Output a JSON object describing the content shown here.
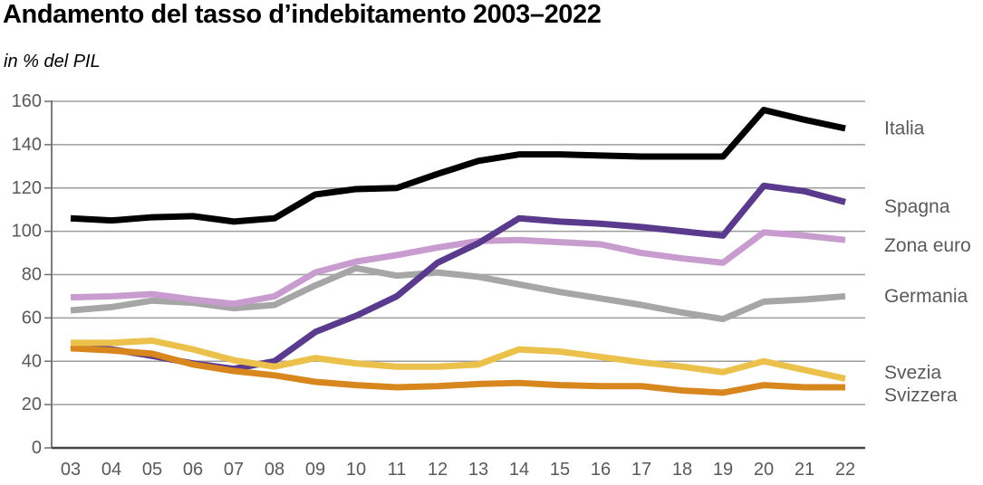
{
  "title": "Andamento del tasso d’indebitamento 2003–2022",
  "subtitle": "in % del PIL",
  "chart_data": {
    "type": "line",
    "categories": [
      "03",
      "04",
      "05",
      "06",
      "07",
      "08",
      "09",
      "10",
      "11",
      "12",
      "13",
      "14",
      "15",
      "16",
      "17",
      "18",
      "19",
      "20",
      "21",
      "22"
    ],
    "yticks": [
      0,
      20,
      40,
      60,
      80,
      100,
      120,
      140,
      160
    ],
    "ylim": [
      0,
      160
    ],
    "xlabel": "",
    "ylabel": "in % del PIL",
    "grid": true,
    "legend_position": "right-line-end-labels",
    "tick_text_color": "#58595b",
    "grid_color": "#9d9d9d",
    "axis_color": "#454545",
    "series": [
      {
        "name": "Italia",
        "color": "#000000",
        "values": [
          106,
          105,
          106.5,
          107,
          104.5,
          106,
          117,
          119.5,
          120,
          126.5,
          132.5,
          135.5,
          135.5,
          135,
          134.5,
          134.5,
          134.5,
          156,
          151.5,
          147.5
        ]
      },
      {
        "name": "Spagna",
        "color": "#5a3a8c",
        "values": [
          47.5,
          45.5,
          42.5,
          39,
          36.5,
          40,
          53.5,
          61,
          70,
          85.5,
          94.5,
          106,
          104.5,
          103.5,
          102,
          100,
          98,
          121,
          118.5,
          113.5
        ]
      },
      {
        "name": "Zona euro",
        "color": "#c89ccf",
        "values": [
          69.5,
          70,
          71,
          68.5,
          66.5,
          70,
          81,
          86,
          89,
          92.5,
          95.5,
          96,
          95,
          94,
          90,
          87.5,
          85.5,
          99.5,
          98,
          96
        ]
      },
      {
        "name": "Germania",
        "color": "#a6a6a6",
        "values": [
          63.5,
          65,
          68,
          67,
          64.5,
          66,
          75,
          83,
          79.5,
          81,
          79,
          75.5,
          72,
          69,
          66,
          62.5,
          59.5,
          67.5,
          68.5,
          70
        ]
      },
      {
        "name": "Svezia",
        "color": "#ebc14b",
        "values": [
          48.5,
          48.5,
          49.5,
          45.5,
          40.5,
          37.5,
          41.5,
          39,
          37.5,
          37.5,
          38.5,
          45.5,
          44.5,
          42,
          39.5,
          37.5,
          35,
          40,
          36,
          32
        ]
      },
      {
        "name": "Svizzera",
        "color": "#d8871f",
        "values": [
          46,
          45,
          43.5,
          38.5,
          35.5,
          33.5,
          30.5,
          29,
          28,
          28.5,
          29.5,
          30,
          29,
          28.5,
          28.5,
          26.5,
          25.5,
          29,
          28,
          28
        ]
      }
    ]
  }
}
